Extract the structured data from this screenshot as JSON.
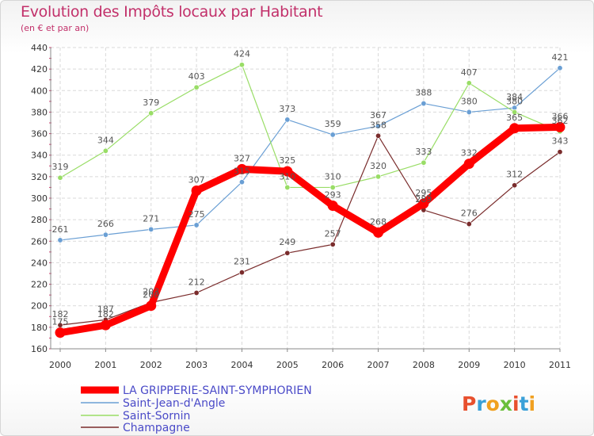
{
  "header": {
    "title": "Evolution des Impôts locaux par Habitant",
    "subtitle": "(en € et par an)"
  },
  "logo": {
    "text": "Proxiti"
  },
  "chart_data": {
    "type": "line",
    "title": "Evolution des Impôts locaux par Habitant",
    "subtitle": "(en € et par an)",
    "xlabel": "",
    "ylabel": "",
    "x": [
      "2000",
      "2001",
      "2002",
      "2003",
      "2004",
      "2005",
      "2006",
      "2007",
      "2008",
      "2009",
      "2010",
      "2011"
    ],
    "ylim": [
      160,
      440
    ],
    "yticks": [
      160,
      180,
      200,
      220,
      240,
      260,
      280,
      300,
      320,
      340,
      360,
      380,
      400,
      420,
      440
    ],
    "grid": true,
    "legend_position": "bottom-left",
    "series": [
      {
        "name": "LA GRIPPERIE-SAINT-SYMPHORIEN",
        "color": "#ff0000",
        "values": [
          175,
          182,
          200,
          307,
          327,
          325,
          293,
          268,
          295,
          332,
          365,
          366
        ]
      },
      {
        "name": "Saint-Jean-d'Angle",
        "color": "#6a9fd4",
        "values": [
          261,
          266,
          271,
          275,
          315,
          373,
          359,
          367,
          388,
          380,
          384,
          421
        ]
      },
      {
        "name": "Saint-Sornin",
        "color": "#99dd66",
        "values": [
          319,
          344,
          379,
          403,
          424,
          310,
          310,
          320,
          333,
          407,
          380,
          362
        ]
      },
      {
        "name": "Champagne",
        "color": "#7a2c2c",
        "values": [
          182,
          187,
          203,
          212,
          231,
          249,
          257,
          358,
          289,
          276,
          312,
          343
        ]
      }
    ]
  }
}
